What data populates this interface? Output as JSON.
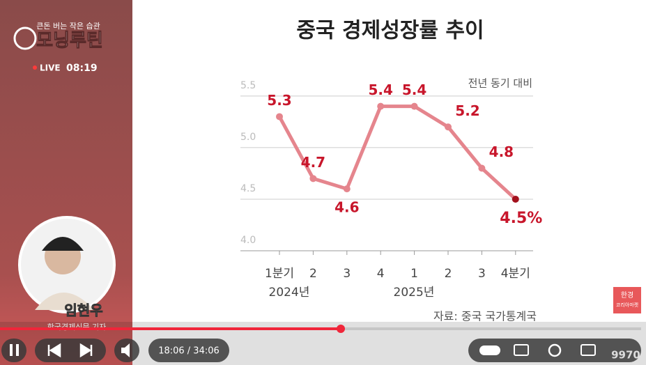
{
  "chart_data": {
    "type": "line",
    "title": "중국 경제성장률 추이",
    "subtitle": "전년 동기 대비",
    "source": "자료: 중국 국가통계국",
    "categories": [
      "1분기",
      "2",
      "3",
      "4",
      "1",
      "2",
      "3",
      "4분기"
    ],
    "category_groups": [
      "2024년",
      "2025년"
    ],
    "series": [
      {
        "color": "#e5858d",
        "values": [
          5.3,
          4.7,
          4.6,
          5.4,
          5.4,
          5.2,
          4.8,
          4.5
        ],
        "value_labels": [
          "5.3",
          "4.7",
          "4.6",
          "5.4",
          "5.4",
          "5.2",
          "4.8",
          "4.5%"
        ]
      }
    ],
    "label_color": "#c8162b",
    "last_point_color": "#a3111d",
    "ylim": [
      4,
      5.6
    ],
    "yticks": [
      {
        "value": 4,
        "label": "4.0"
      },
      4.5,
      {
        "value": 5,
        "label": "5.0"
      },
      5.5
    ],
    "grid": true
  },
  "video": {
    "tagline": "큰돈 버는 작은 습관",
    "channel": "모닝루틴",
    "live": "LIVE",
    "clock": "08:19",
    "speaker": "임현우",
    "affiliation": "한국경제신문 기자",
    "time": "18:06 / 34:06",
    "badge": [
      "한경",
      "코리아마켓"
    ],
    "watermark": "9970"
  }
}
